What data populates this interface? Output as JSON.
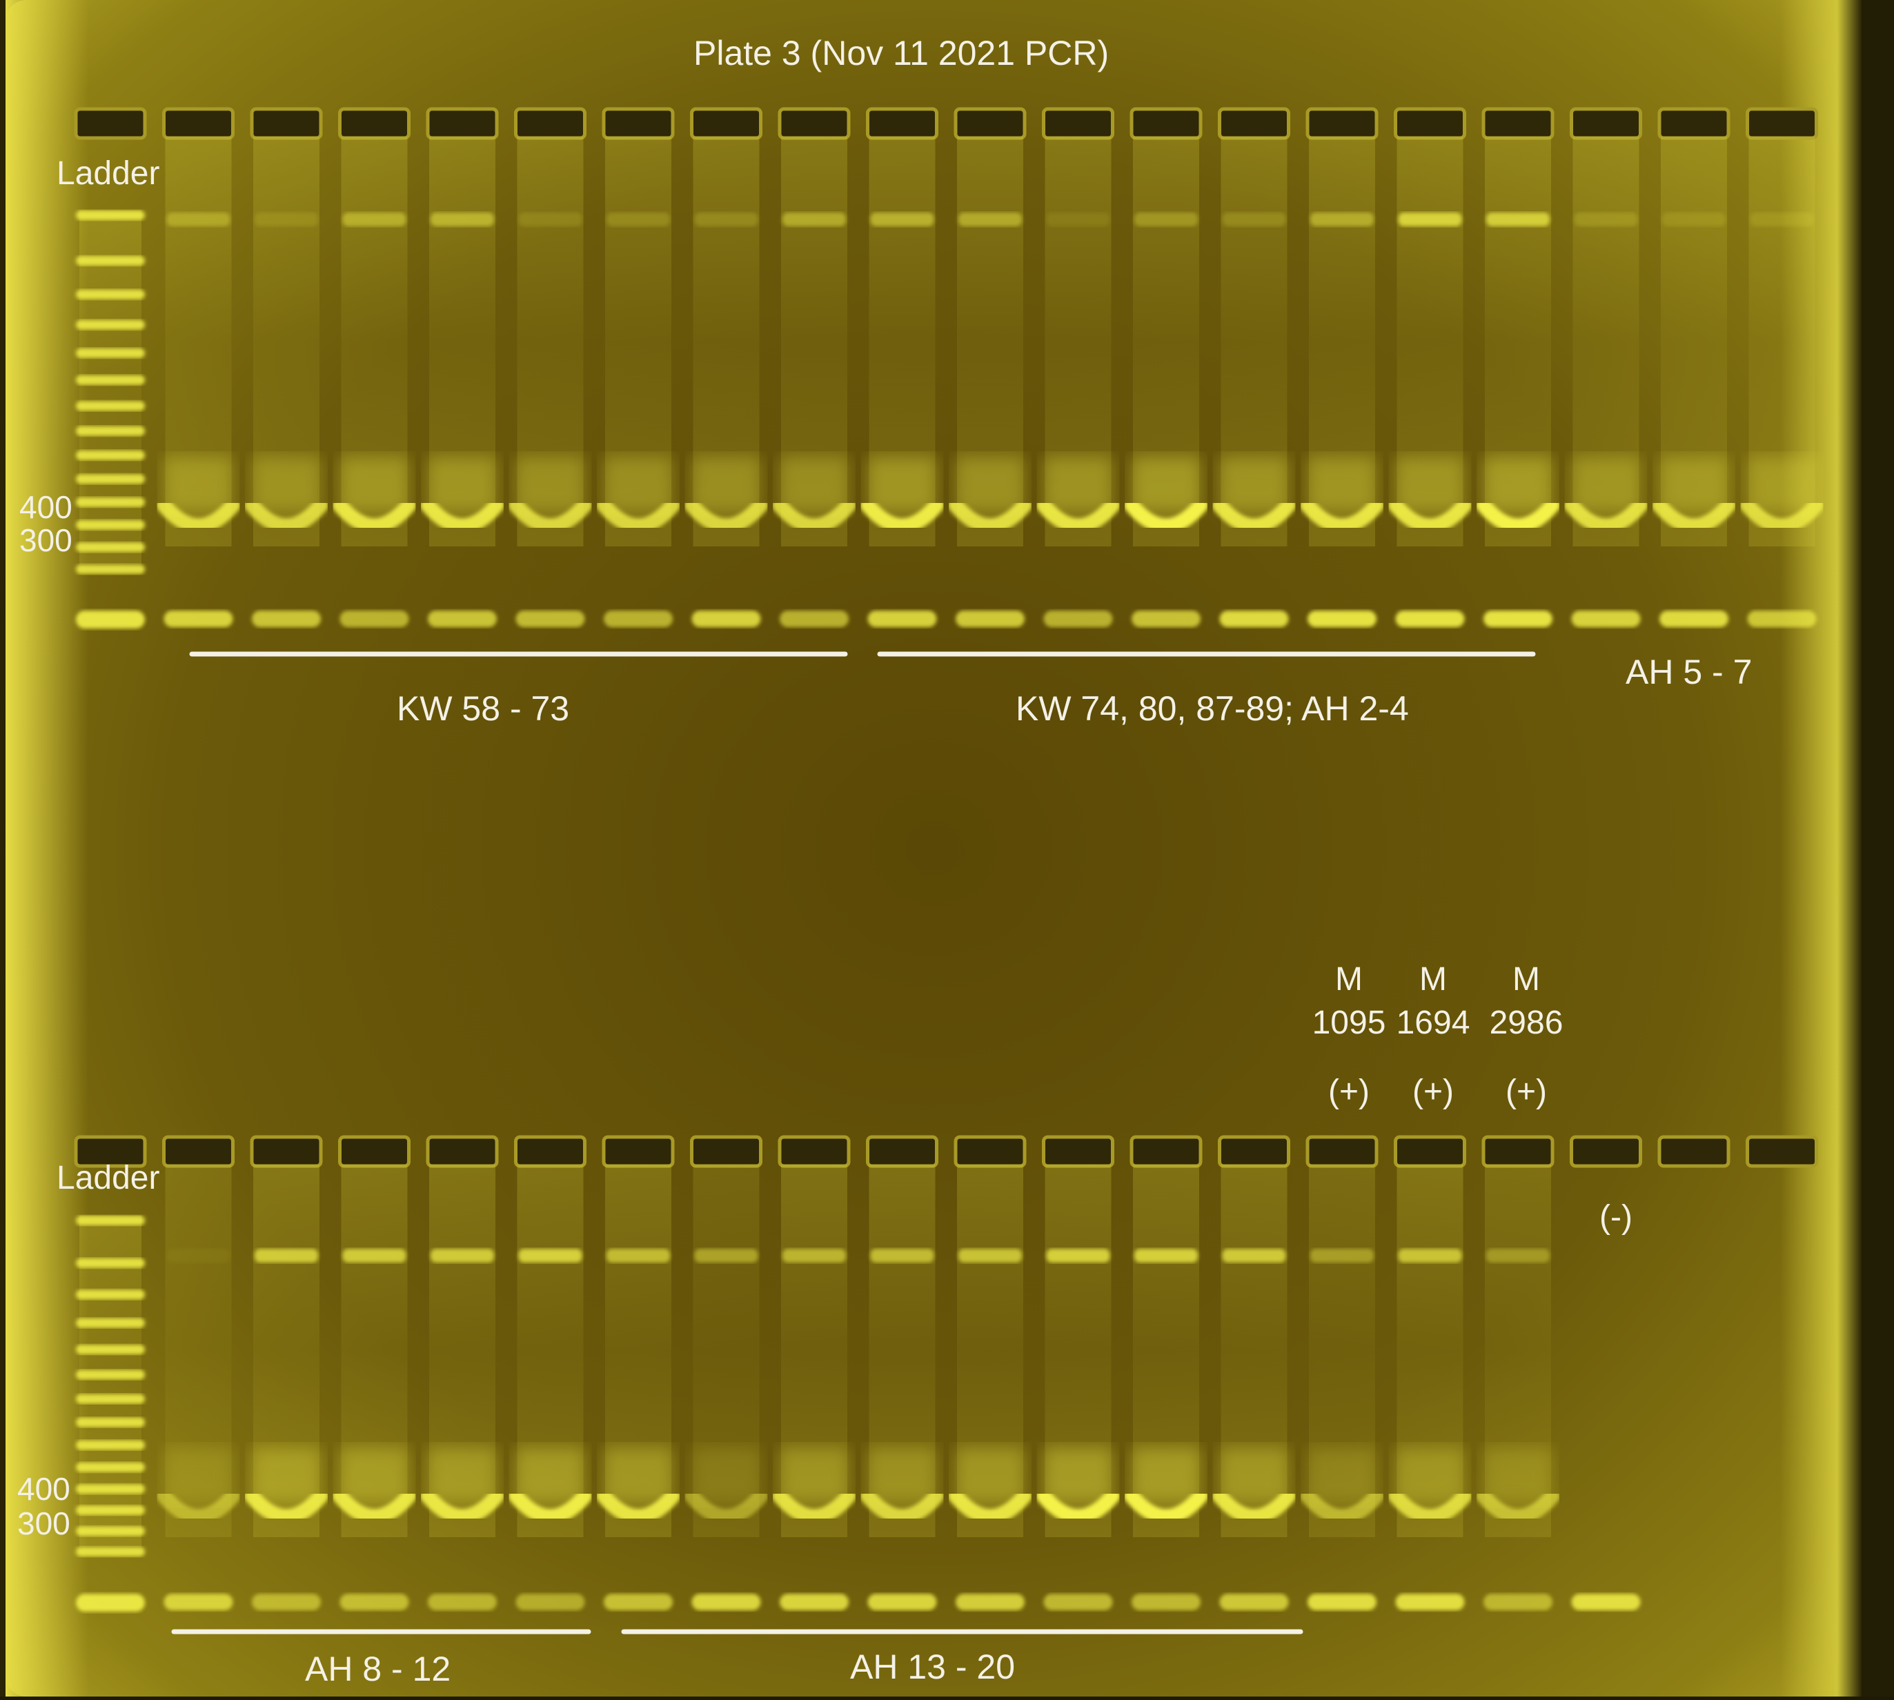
{
  "title": "Plate 3 (Nov 11 2021 PCR)",
  "top_row": {
    "ladder_label": "Ladder",
    "marker_400": "400",
    "marker_300": "300",
    "groups": [
      {
        "label": "KW 58 - 73"
      },
      {
        "label": "KW 74, 80, 87-89; AH 2-4"
      },
      {
        "label": "AH 5 - 7"
      }
    ]
  },
  "bottom_row": {
    "ladder_label": "Ladder",
    "marker_400": "400",
    "marker_300": "300",
    "groups": [
      {
        "label": "AH 8 - 12"
      },
      {
        "label": "AH 13 - 20"
      }
    ],
    "controls": [
      {
        "line1": "M",
        "line2": "1095",
        "sign": "(+)"
      },
      {
        "line1": "M",
        "line2": "1694",
        "sign": "(+)"
      },
      {
        "line1": "M",
        "line2": "2986",
        "sign": "(+)"
      }
    ],
    "negative_control": "(-)"
  },
  "colors": {
    "gel_center": "#5a4a06",
    "gel_edge": "#d9cf3a",
    "band": "#f4f24a",
    "label_text": "#f4f1e6"
  }
}
